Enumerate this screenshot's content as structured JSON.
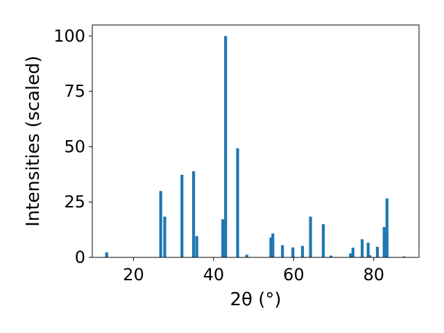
{
  "chart_data": {
    "type": "bar",
    "title": "",
    "xlabel": "2θ (°)",
    "ylabel": "Intensities (scaled)",
    "xlim": [
      9.7,
      91.3
    ],
    "ylim": [
      0,
      105
    ],
    "xticks": [
      20,
      40,
      60,
      80
    ],
    "yticks": [
      0,
      25,
      50,
      75,
      100
    ],
    "xtick_labels": [
      "20",
      "40",
      "60",
      "80"
    ],
    "ytick_labels": [
      "0",
      "25",
      "50",
      "75",
      "100"
    ],
    "grid": false,
    "legend": "none",
    "bar_color": "#1f77b4",
    "points": [
      {
        "x": 13.3,
        "y": 2.3
      },
      {
        "x": 26.8,
        "y": 30.0
      },
      {
        "x": 27.8,
        "y": 18.4
      },
      {
        "x": 32.1,
        "y": 37.3
      },
      {
        "x": 35.0,
        "y": 38.9
      },
      {
        "x": 35.8,
        "y": 9.6
      },
      {
        "x": 42.3,
        "y": 17.2
      },
      {
        "x": 43.0,
        "y": 100.0
      },
      {
        "x": 46.0,
        "y": 49.3
      },
      {
        "x": 48.3,
        "y": 1.2
      },
      {
        "x": 54.3,
        "y": 9.0
      },
      {
        "x": 54.8,
        "y": 10.8
      },
      {
        "x": 57.2,
        "y": 5.5
      },
      {
        "x": 59.8,
        "y": 4.5
      },
      {
        "x": 62.2,
        "y": 5.2
      },
      {
        "x": 64.2,
        "y": 18.4
      },
      {
        "x": 67.4,
        "y": 15.0
      },
      {
        "x": 69.3,
        "y": 0.8
      },
      {
        "x": 74.2,
        "y": 1.8
      },
      {
        "x": 74.8,
        "y": 4.4
      },
      {
        "x": 77.1,
        "y": 8.2
      },
      {
        "x": 78.6,
        "y": 6.7
      },
      {
        "x": 79.0,
        "y": 1.0
      },
      {
        "x": 80.9,
        "y": 4.8
      },
      {
        "x": 82.6,
        "y": 13.7
      },
      {
        "x": 83.3,
        "y": 26.6
      },
      {
        "x": 87.5,
        "y": 0.4
      }
    ]
  }
}
